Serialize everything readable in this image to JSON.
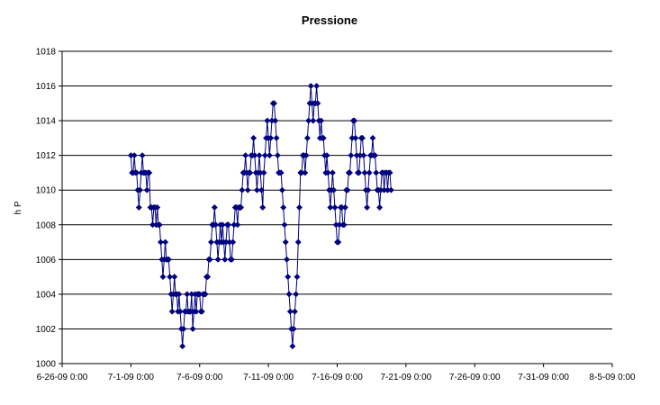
{
  "chart_data": {
    "type": "line",
    "title": "Pressione",
    "xlabel": "",
    "ylabel": "h P",
    "ylim": [
      1000,
      1018
    ],
    "yticks": [
      1000,
      1002,
      1004,
      1006,
      1008,
      1010,
      1012,
      1014,
      1016,
      1018
    ],
    "xlim": [
      "2009-06-26",
      "2009-08-05"
    ],
    "xticks": [
      {
        "date": "2009-06-26",
        "label": "6-26-09 0:00"
      },
      {
        "date": "2009-07-01",
        "label": "7-1-09 0:00"
      },
      {
        "date": "2009-07-06",
        "label": "7-6-09 0:00"
      },
      {
        "date": "2009-07-11",
        "label": "7-11-09 0:00"
      },
      {
        "date": "2009-07-16",
        "label": "7-16-09 0:00"
      },
      {
        "date": "2009-07-21",
        "label": "7-21-09 0:00"
      },
      {
        "date": "2009-07-26",
        "label": "7-26-09 0:00"
      },
      {
        "date": "2009-07-31",
        "label": "7-31-09 0:00"
      },
      {
        "date": "2009-08-05",
        "label": "8-5-09 0:00"
      }
    ],
    "grid": true,
    "line_color": "#000080",
    "marker": "diamond",
    "series": [
      {
        "points": [
          [
            "2009-07-01 00:00",
            1012
          ],
          [
            "2009-07-01 02:00",
            1011
          ],
          [
            "2009-07-01 04:00",
            1011
          ],
          [
            "2009-07-01 06:00",
            1012
          ],
          [
            "2009-07-01 08:00",
            1011
          ],
          [
            "2009-07-01 10:00",
            1011
          ],
          [
            "2009-07-01 12:00",
            1010
          ],
          [
            "2009-07-01 14:00",
            1009
          ],
          [
            "2009-07-01 16:00",
            1010
          ],
          [
            "2009-07-01 18:00",
            1011
          ],
          [
            "2009-07-01 20:00",
            1012
          ],
          [
            "2009-07-01 22:00",
            1011
          ],
          [
            "2009-07-02 00:00",
            1011
          ],
          [
            "2009-07-02 02:00",
            1011
          ],
          [
            "2009-07-02 04:00",
            1010
          ],
          [
            "2009-07-02 06:00",
            1011
          ],
          [
            "2009-07-02 08:00",
            1011
          ],
          [
            "2009-07-02 10:00",
            1009
          ],
          [
            "2009-07-02 12:00",
            1009
          ],
          [
            "2009-07-02 14:00",
            1008
          ],
          [
            "2009-07-02 16:00",
            1009
          ],
          [
            "2009-07-02 18:00",
            1009
          ],
          [
            "2009-07-02 20:00",
            1008
          ],
          [
            "2009-07-02 22:00",
            1009
          ],
          [
            "2009-07-03 00:00",
            1008
          ],
          [
            "2009-07-03 02:00",
            1008
          ],
          [
            "2009-07-03 04:00",
            1007
          ],
          [
            "2009-07-03 06:00",
            1006
          ],
          [
            "2009-07-03 08:00",
            1005
          ],
          [
            "2009-07-03 10:00",
            1006
          ],
          [
            "2009-07-03 12:00",
            1007
          ],
          [
            "2009-07-03 14:00",
            1006
          ],
          [
            "2009-07-03 16:00",
            1006
          ],
          [
            "2009-07-03 18:00",
            1006
          ],
          [
            "2009-07-03 20:00",
            1005
          ],
          [
            "2009-07-03 22:00",
            1004
          ],
          [
            "2009-07-04 00:00",
            1003
          ],
          [
            "2009-07-04 02:00",
            1004
          ],
          [
            "2009-07-04 04:00",
            1005
          ],
          [
            "2009-07-04 06:00",
            1004
          ],
          [
            "2009-07-04 08:00",
            1004
          ],
          [
            "2009-07-04 10:00",
            1003
          ],
          [
            "2009-07-04 12:00",
            1004
          ],
          [
            "2009-07-04 14:00",
            1003
          ],
          [
            "2009-07-04 16:00",
            1002
          ],
          [
            "2009-07-04 18:00",
            1001
          ],
          [
            "2009-07-04 20:00",
            1002
          ],
          [
            "2009-07-04 22:00",
            1003
          ],
          [
            "2009-07-05 00:00",
            1003
          ],
          [
            "2009-07-05 02:00",
            1004
          ],
          [
            "2009-07-05 04:00",
            1003
          ],
          [
            "2009-07-05 06:00",
            1003
          ],
          [
            "2009-07-05 08:00",
            1003
          ],
          [
            "2009-07-05 10:00",
            1004
          ],
          [
            "2009-07-05 12:00",
            1002
          ],
          [
            "2009-07-05 14:00",
            1003
          ],
          [
            "2009-07-05 16:00",
            1004
          ],
          [
            "2009-07-05 18:00",
            1003
          ],
          [
            "2009-07-05 20:00",
            1004
          ],
          [
            "2009-07-05 22:00",
            1004
          ],
          [
            "2009-07-06 00:00",
            1004
          ],
          [
            "2009-07-06 02:00",
            1003
          ],
          [
            "2009-07-06 04:00",
            1003
          ],
          [
            "2009-07-06 06:00",
            1004
          ],
          [
            "2009-07-06 08:00",
            1004
          ],
          [
            "2009-07-06 10:00",
            1004
          ],
          [
            "2009-07-06 12:00",
            1005
          ],
          [
            "2009-07-06 14:00",
            1005
          ],
          [
            "2009-07-06 16:00",
            1006
          ],
          [
            "2009-07-06 18:00",
            1006
          ],
          [
            "2009-07-06 20:00",
            1007
          ],
          [
            "2009-07-06 22:00",
            1008
          ],
          [
            "2009-07-07 00:00",
            1008
          ],
          [
            "2009-07-07 02:00",
            1009
          ],
          [
            "2009-07-07 04:00",
            1008
          ],
          [
            "2009-07-07 06:00",
            1007
          ],
          [
            "2009-07-07 08:00",
            1006
          ],
          [
            "2009-07-07 10:00",
            1007
          ],
          [
            "2009-07-07 12:00",
            1008
          ],
          [
            "2009-07-07 14:00",
            1007
          ],
          [
            "2009-07-07 16:00",
            1008
          ],
          [
            "2009-07-07 18:00",
            1007
          ],
          [
            "2009-07-07 20:00",
            1006
          ],
          [
            "2009-07-07 22:00",
            1007
          ],
          [
            "2009-07-08 00:00",
            1008
          ],
          [
            "2009-07-08 02:00",
            1008
          ],
          [
            "2009-07-08 04:00",
            1007
          ],
          [
            "2009-07-08 06:00",
            1006
          ],
          [
            "2009-07-08 08:00",
            1006
          ],
          [
            "2009-07-08 10:00",
            1007
          ],
          [
            "2009-07-08 12:00",
            1008
          ],
          [
            "2009-07-08 14:00",
            1009
          ],
          [
            "2009-07-08 16:00",
            1009
          ],
          [
            "2009-07-08 18:00",
            1008
          ],
          [
            "2009-07-08 20:00",
            1009
          ],
          [
            "2009-07-08 22:00",
            1009
          ],
          [
            "2009-07-09 00:00",
            1009
          ],
          [
            "2009-07-09 02:00",
            1010
          ],
          [
            "2009-07-09 04:00",
            1011
          ],
          [
            "2009-07-09 06:00",
            1011
          ],
          [
            "2009-07-09 08:00",
            1012
          ],
          [
            "2009-07-09 10:00",
            1011
          ],
          [
            "2009-07-09 12:00",
            1010
          ],
          [
            "2009-07-09 14:00",
            1011
          ],
          [
            "2009-07-09 16:00",
            1011
          ],
          [
            "2009-07-09 18:00",
            1012
          ],
          [
            "2009-07-09 20:00",
            1012
          ],
          [
            "2009-07-09 22:00",
            1013
          ],
          [
            "2009-07-10 00:00",
            1012
          ],
          [
            "2009-07-10 02:00",
            1011
          ],
          [
            "2009-07-10 04:00",
            1010
          ],
          [
            "2009-07-10 06:00",
            1011
          ],
          [
            "2009-07-10 08:00",
            1012
          ],
          [
            "2009-07-10 10:00",
            1011
          ],
          [
            "2009-07-10 12:00",
            1010
          ],
          [
            "2009-07-10 14:00",
            1009
          ],
          [
            "2009-07-10 16:00",
            1011
          ],
          [
            "2009-07-10 18:00",
            1012
          ],
          [
            "2009-07-10 20:00",
            1013
          ],
          [
            "2009-07-10 22:00",
            1014
          ],
          [
            "2009-07-11 00:00",
            1013
          ],
          [
            "2009-07-11 02:00",
            1012
          ],
          [
            "2009-07-11 04:00",
            1013
          ],
          [
            "2009-07-11 06:00",
            1014
          ],
          [
            "2009-07-11 08:00",
            1015
          ],
          [
            "2009-07-11 10:00",
            1015
          ],
          [
            "2009-07-11 12:00",
            1014
          ],
          [
            "2009-07-11 14:00",
            1013
          ],
          [
            "2009-07-11 16:00",
            1012
          ],
          [
            "2009-07-11 18:00",
            1011
          ],
          [
            "2009-07-11 20:00",
            1011
          ],
          [
            "2009-07-11 22:00",
            1011
          ],
          [
            "2009-07-12 00:00",
            1010
          ],
          [
            "2009-07-12 02:00",
            1009
          ],
          [
            "2009-07-12 04:00",
            1008
          ],
          [
            "2009-07-12 06:00",
            1007
          ],
          [
            "2009-07-12 08:00",
            1006
          ],
          [
            "2009-07-12 10:00",
            1005
          ],
          [
            "2009-07-12 12:00",
            1004
          ],
          [
            "2009-07-12 14:00",
            1003
          ],
          [
            "2009-07-12 16:00",
            1002
          ],
          [
            "2009-07-12 18:00",
            1001
          ],
          [
            "2009-07-12 20:00",
            1002
          ],
          [
            "2009-07-12 22:00",
            1003
          ],
          [
            "2009-07-13 00:00",
            1004
          ],
          [
            "2009-07-13 02:00",
            1005
          ],
          [
            "2009-07-13 04:00",
            1007
          ],
          [
            "2009-07-13 06:00",
            1009
          ],
          [
            "2009-07-13 08:00",
            1011
          ],
          [
            "2009-07-13 10:00",
            1011
          ],
          [
            "2009-07-13 12:00",
            1012
          ],
          [
            "2009-07-13 14:00",
            1012
          ],
          [
            "2009-07-13 16:00",
            1011
          ],
          [
            "2009-07-13 18:00",
            1012
          ],
          [
            "2009-07-13 20:00",
            1013
          ],
          [
            "2009-07-13 22:00",
            1014
          ],
          [
            "2009-07-14 00:00",
            1015
          ],
          [
            "2009-07-14 02:00",
            1016
          ],
          [
            "2009-07-14 04:00",
            1015
          ],
          [
            "2009-07-14 06:00",
            1014
          ],
          [
            "2009-07-14 08:00",
            1015
          ],
          [
            "2009-07-14 10:00",
            1015
          ],
          [
            "2009-07-14 12:00",
            1016
          ],
          [
            "2009-07-14 14:00",
            1015
          ],
          [
            "2009-07-14 16:00",
            1014
          ],
          [
            "2009-07-14 18:00",
            1013
          ],
          [
            "2009-07-14 20:00",
            1014
          ],
          [
            "2009-07-14 22:00",
            1013
          ],
          [
            "2009-07-15 00:00",
            1013
          ],
          [
            "2009-07-15 02:00",
            1012
          ],
          [
            "2009-07-15 04:00",
            1011
          ],
          [
            "2009-07-15 06:00",
            1012
          ],
          [
            "2009-07-15 08:00",
            1011
          ],
          [
            "2009-07-15 10:00",
            1010
          ],
          [
            "2009-07-15 12:00",
            1009
          ],
          [
            "2009-07-15 14:00",
            1010
          ],
          [
            "2009-07-15 16:00",
            1011
          ],
          [
            "2009-07-15 18:00",
            1010
          ],
          [
            "2009-07-15 20:00",
            1009
          ],
          [
            "2009-07-15 22:00",
            1008
          ],
          [
            "2009-07-16 00:00",
            1007
          ],
          [
            "2009-07-16 02:00",
            1007
          ],
          [
            "2009-07-16 04:00",
            1008
          ],
          [
            "2009-07-16 06:00",
            1009
          ],
          [
            "2009-07-16 08:00",
            1009
          ],
          [
            "2009-07-16 10:00",
            1008
          ],
          [
            "2009-07-16 12:00",
            1008
          ],
          [
            "2009-07-16 14:00",
            1009
          ],
          [
            "2009-07-16 16:00",
            1010
          ],
          [
            "2009-07-16 18:00",
            1010
          ],
          [
            "2009-07-16 20:00",
            1011
          ],
          [
            "2009-07-16 22:00",
            1011
          ],
          [
            "2009-07-17 00:00",
            1012
          ],
          [
            "2009-07-17 02:00",
            1013
          ],
          [
            "2009-07-17 04:00",
            1014
          ],
          [
            "2009-07-17 06:00",
            1014
          ],
          [
            "2009-07-17 08:00",
            1013
          ],
          [
            "2009-07-17 10:00",
            1012
          ],
          [
            "2009-07-17 12:00",
            1011
          ],
          [
            "2009-07-17 14:00",
            1011
          ],
          [
            "2009-07-17 16:00",
            1012
          ],
          [
            "2009-07-17 18:00",
            1013
          ],
          [
            "2009-07-17 20:00",
            1013
          ],
          [
            "2009-07-17 22:00",
            1012
          ],
          [
            "2009-07-18 00:00",
            1011
          ],
          [
            "2009-07-18 02:00",
            1010
          ],
          [
            "2009-07-18 04:00",
            1009
          ],
          [
            "2009-07-18 06:00",
            1010
          ],
          [
            "2009-07-18 08:00",
            1011
          ],
          [
            "2009-07-18 10:00",
            1012
          ],
          [
            "2009-07-18 12:00",
            1012
          ],
          [
            "2009-07-18 14:00",
            1013
          ],
          [
            "2009-07-18 16:00",
            1012
          ],
          [
            "2009-07-18 18:00",
            1012
          ],
          [
            "2009-07-18 20:00",
            1011
          ],
          [
            "2009-07-18 22:00",
            1010
          ],
          [
            "2009-07-19 00:00",
            1010
          ],
          [
            "2009-07-19 02:00",
            1009
          ],
          [
            "2009-07-19 04:00",
            1010
          ],
          [
            "2009-07-19 06:00",
            1011
          ],
          [
            "2009-07-19 08:00",
            1011
          ],
          [
            "2009-07-19 10:00",
            1010
          ],
          [
            "2009-07-19 12:00",
            1011
          ],
          [
            "2009-07-19 14:00",
            1011
          ],
          [
            "2009-07-19 16:00",
            1010
          ],
          [
            "2009-07-19 18:00",
            1011
          ],
          [
            "2009-07-19 20:00",
            1011
          ],
          [
            "2009-07-19 22:00",
            1010
          ]
        ]
      }
    ]
  }
}
